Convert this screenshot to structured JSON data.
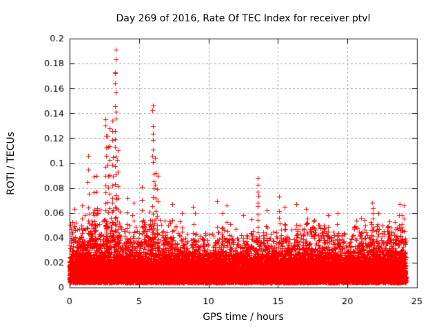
{
  "chart_data": {
    "type": "scatter",
    "title": "Day 269 of 2016, Rate Of TEC Index for receiver ptvl",
    "xlabel": "GPS time / hours",
    "ylabel": "ROTI / TECUs",
    "xlim": [
      0,
      25
    ],
    "ylim": [
      0,
      0.2
    ],
    "xticks": {
      "values": [
        0,
        5,
        10,
        15,
        20,
        25
      ],
      "labels": [
        "0",
        "5",
        "10",
        "15",
        "20",
        "25"
      ]
    },
    "yticks": {
      "values": [
        0,
        0.02,
        0.04,
        0.06,
        0.08,
        0.1,
        0.12,
        0.14,
        0.16,
        0.18,
        0.2
      ],
      "labels": [
        "0",
        "0.02",
        "0.04",
        "0.06",
        "0.08",
        "0.1",
        "0.12",
        "0.14",
        "0.16",
        "0.18",
        "0.2"
      ]
    },
    "grid": true,
    "legend": "none",
    "marker": {
      "shape": "plus",
      "color": "#ff0000",
      "size": 7
    },
    "grid_color": "#a8a8a8",
    "axis_color": "#000000",
    "background": "#ffffff",
    "x_data_range": [
      0,
      24.2
    ],
    "band": {
      "floor": 0.004,
      "dense_top": 0.028,
      "points_per_hour": 420,
      "envelope_per_hour": [
        0.052,
        0.058,
        0.062,
        0.062,
        0.052,
        0.052,
        0.058,
        0.052,
        0.048,
        0.045,
        0.042,
        0.05,
        0.042,
        0.048,
        0.045,
        0.05,
        0.048,
        0.052,
        0.05,
        0.05,
        0.042,
        0.055,
        0.05,
        0.052,
        0.055
      ]
    },
    "spikes": [
      {
        "x": 0.35,
        "peak": 0.063,
        "n": 3
      },
      {
        "x": 0.9,
        "peak": 0.066,
        "n": 4
      },
      {
        "x": 1.35,
        "peak": 0.106,
        "n": 6
      },
      {
        "x": 1.75,
        "peak": 0.089,
        "n": 4
      },
      {
        "x": 1.95,
        "peak": 0.09,
        "n": 4
      },
      {
        "x": 2.6,
        "peak": 0.135,
        "n": 11
      },
      {
        "x": 2.75,
        "peak": 0.122,
        "n": 7
      },
      {
        "x": 2.9,
        "peak": 0.128,
        "n": 6
      },
      {
        "x": 3.1,
        "peak": 0.134,
        "n": 9
      },
      {
        "x": 3.3,
        "peak": 0.191,
        "n": 16
      },
      {
        "x": 3.45,
        "peak": 0.11,
        "n": 7
      },
      {
        "x": 4.15,
        "peak": 0.072,
        "n": 4
      },
      {
        "x": 4.6,
        "peak": 0.068,
        "n": 3
      },
      {
        "x": 5.2,
        "peak": 0.081,
        "n": 5
      },
      {
        "x": 6.0,
        "peak": 0.146,
        "n": 13
      },
      {
        "x": 6.15,
        "peak": 0.104,
        "n": 6
      },
      {
        "x": 6.35,
        "peak": 0.09,
        "n": 5
      },
      {
        "x": 7.4,
        "peak": 0.067,
        "n": 3
      },
      {
        "x": 8.1,
        "peak": 0.06,
        "n": 3
      },
      {
        "x": 8.9,
        "peak": 0.065,
        "n": 3
      },
      {
        "x": 9.05,
        "peak": 0.06,
        "n": 2
      },
      {
        "x": 10.6,
        "peak": 0.069,
        "n": 2
      },
      {
        "x": 11.0,
        "peak": 0.06,
        "n": 3
      },
      {
        "x": 11.3,
        "peak": 0.066,
        "n": 3
      },
      {
        "x": 12.5,
        "peak": 0.058,
        "n": 2
      },
      {
        "x": 13.1,
        "peak": 0.055,
        "n": 3
      },
      {
        "x": 13.55,
        "peak": 0.088,
        "n": 11
      },
      {
        "x": 14.2,
        "peak": 0.062,
        "n": 3
      },
      {
        "x": 15.1,
        "peak": 0.073,
        "n": 4
      },
      {
        "x": 15.5,
        "peak": 0.065,
        "n": 3
      },
      {
        "x": 16.3,
        "peak": 0.067,
        "n": 2
      },
      {
        "x": 17.0,
        "peak": 0.063,
        "n": 3
      },
      {
        "x": 18.6,
        "peak": 0.058,
        "n": 4
      },
      {
        "x": 19.3,
        "peak": 0.06,
        "n": 4
      },
      {
        "x": 21.0,
        "peak": 0.056,
        "n": 3
      },
      {
        "x": 21.8,
        "peak": 0.068,
        "n": 9
      },
      {
        "x": 22.2,
        "peak": 0.06,
        "n": 4
      },
      {
        "x": 23.0,
        "peak": 0.053,
        "n": 3
      },
      {
        "x": 23.75,
        "peak": 0.067,
        "n": 2
      },
      {
        "x": 23.9,
        "peak": 0.058,
        "n": 5
      },
      {
        "x": 24.05,
        "peak": 0.066,
        "n": 4
      }
    ]
  }
}
